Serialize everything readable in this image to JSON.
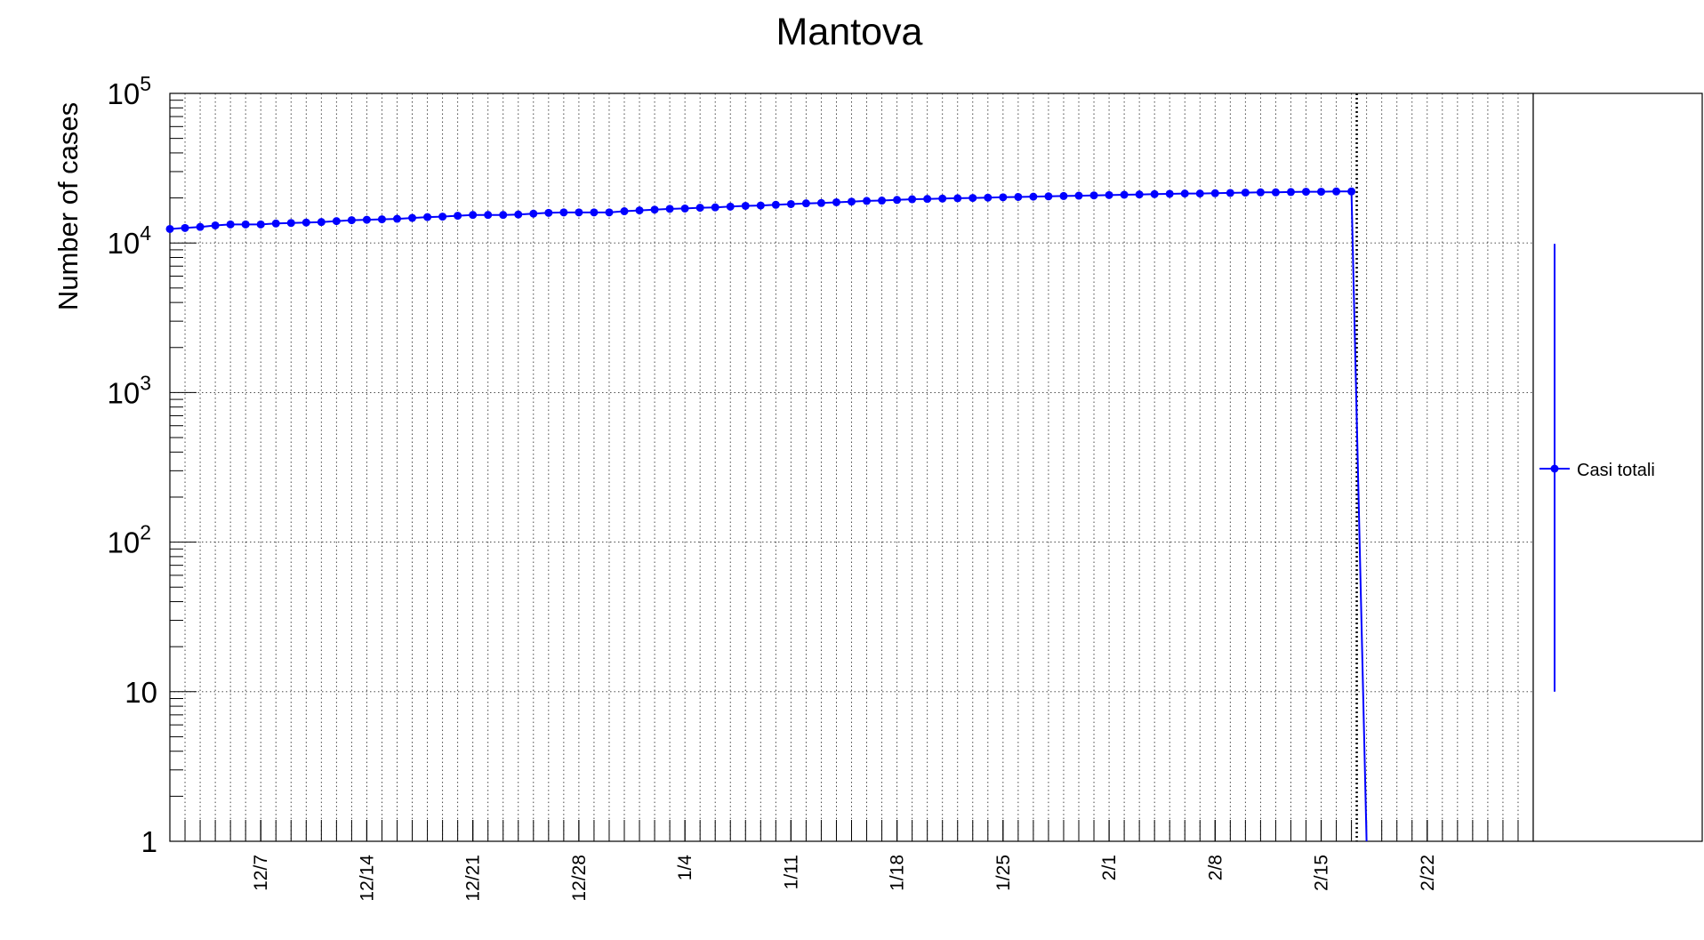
{
  "chart_data": {
    "type": "line",
    "title": "Mantova",
    "ylabel": "Number of cases",
    "xlabel": "",
    "yscale": "log",
    "ylim": [
      1,
      100000
    ],
    "xlim": [
      "2020-12-01",
      "2021-03-01"
    ],
    "grid": true,
    "legend": "right",
    "x_tick_labels": [
      "12/7",
      "12/14",
      "12/21",
      "12/28",
      "1/4",
      "1/11",
      "1/18",
      "1/25",
      "2/1",
      "2/8",
      "2/15",
      "2/22"
    ],
    "y_tick_labels": [
      "1",
      "10",
      "10^2",
      "10^3",
      "10^4",
      "10^5"
    ],
    "current_date_marker": "2021-02-17",
    "series": [
      {
        "name": "Casi totali",
        "color": "#0000ff",
        "x": [
          "2020-12-01",
          "2020-12-02",
          "2020-12-03",
          "2020-12-04",
          "2020-12-05",
          "2020-12-06",
          "2020-12-07",
          "2020-12-08",
          "2020-12-09",
          "2020-12-10",
          "2020-12-11",
          "2020-12-12",
          "2020-12-13",
          "2020-12-14",
          "2020-12-15",
          "2020-12-16",
          "2020-12-17",
          "2020-12-18",
          "2020-12-19",
          "2020-12-20",
          "2020-12-21",
          "2020-12-22",
          "2020-12-23",
          "2020-12-24",
          "2020-12-25",
          "2020-12-26",
          "2020-12-27",
          "2020-12-28",
          "2020-12-29",
          "2020-12-30",
          "2020-12-31",
          "2021-01-01",
          "2021-01-02",
          "2021-01-03",
          "2021-01-04",
          "2021-01-05",
          "2021-01-06",
          "2021-01-07",
          "2021-01-08",
          "2021-01-09",
          "2021-01-10",
          "2021-01-11",
          "2021-01-12",
          "2021-01-13",
          "2021-01-14",
          "2021-01-15",
          "2021-01-16",
          "2021-01-17",
          "2021-01-18",
          "2021-01-19",
          "2021-01-20",
          "2021-01-21",
          "2021-01-22",
          "2021-01-23",
          "2021-01-24",
          "2021-01-25",
          "2021-01-26",
          "2021-01-27",
          "2021-01-28",
          "2021-01-29",
          "2021-01-30",
          "2021-01-31",
          "2021-02-01",
          "2021-02-02",
          "2021-02-03",
          "2021-02-04",
          "2021-02-05",
          "2021-02-06",
          "2021-02-07",
          "2021-02-08",
          "2021-02-09",
          "2021-02-10",
          "2021-02-11",
          "2021-02-12",
          "2021-02-13",
          "2021-02-14",
          "2021-02-15",
          "2021-02-16",
          "2021-02-17",
          "2021-02-18"
        ],
        "y": [
          12400,
          12600,
          12800,
          13100,
          13300,
          13300,
          13300,
          13500,
          13600,
          13700,
          13800,
          14000,
          14200,
          14300,
          14400,
          14500,
          14700,
          14900,
          15000,
          15200,
          15400,
          15400,
          15400,
          15500,
          15700,
          15900,
          16000,
          16000,
          16000,
          16000,
          16300,
          16500,
          16700,
          16900,
          17000,
          17200,
          17300,
          17500,
          17700,
          17800,
          18000,
          18200,
          18400,
          18500,
          18700,
          18900,
          19100,
          19200,
          19400,
          19600,
          19700,
          19800,
          19900,
          20000,
          20100,
          20200,
          20300,
          20400,
          20500,
          20600,
          20700,
          20800,
          20900,
          21000,
          21100,
          21200,
          21300,
          21400,
          21400,
          21500,
          21600,
          21700,
          21800,
          21800,
          21900,
          22000,
          22000,
          22100,
          22100,
          1
        ]
      }
    ]
  }
}
